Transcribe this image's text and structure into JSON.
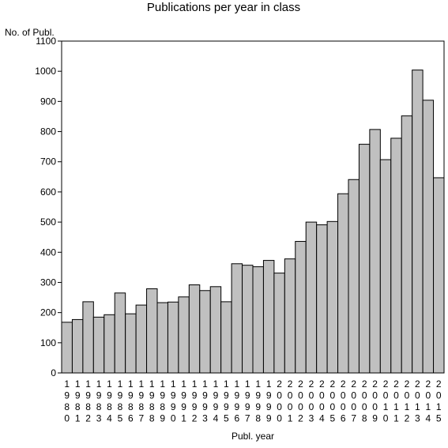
{
  "chart_data": {
    "type": "bar",
    "title": "Publications per year in class",
    "ylabel": "No. of Publ.",
    "xlabel": "Publ. year",
    "ylim": [
      0,
      1100
    ],
    "yticks": [
      0,
      100,
      200,
      300,
      400,
      500,
      600,
      700,
      800,
      900,
      1000,
      1100
    ],
    "grid": false,
    "bar_color": "#c0c0c0",
    "categories": [
      "1980",
      "1981",
      "1982",
      "1983",
      "1984",
      "1985",
      "1986",
      "1987",
      "1988",
      "1989",
      "1990",
      "1991",
      "1992",
      "1993",
      "1994",
      "1995",
      "1996",
      "1997",
      "1998",
      "1999",
      "2000",
      "2001",
      "2002",
      "2003",
      "2004",
      "2005",
      "2006",
      "2007",
      "2008",
      "2009",
      "2010",
      "2011",
      "2012",
      "2013",
      "2014",
      "2015"
    ],
    "values": [
      168,
      177,
      236,
      185,
      193,
      265,
      196,
      225,
      279,
      233,
      235,
      252,
      292,
      273,
      286,
      236,
      362,
      357,
      352,
      373,
      331,
      378,
      436,
      500,
      491,
      502,
      594,
      641,
      758,
      807,
      707,
      778,
      852,
      1004,
      904,
      647
    ]
  }
}
